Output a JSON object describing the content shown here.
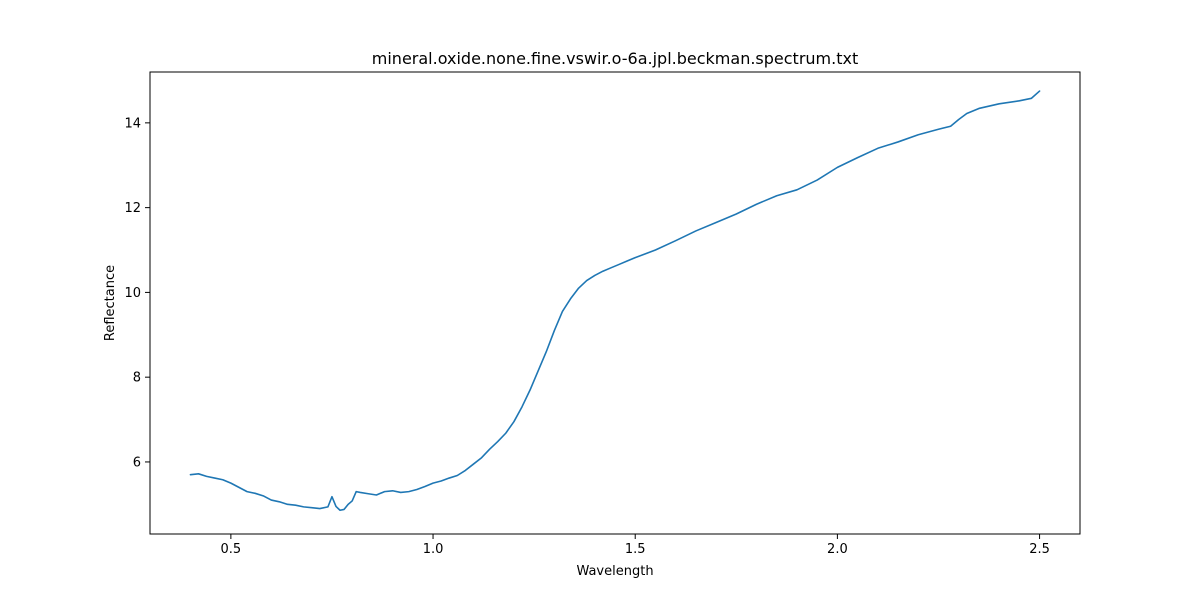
{
  "chart_data": {
    "type": "line",
    "title": "mineral.oxide.none.fine.vswir.o-6a.jpl.beckman.spectrum.txt",
    "xlabel": "Wavelength",
    "ylabel": "Reflectance",
    "xlim": [
      0.3,
      2.6
    ],
    "ylim": [
      4.3,
      15.2
    ],
    "grid": false,
    "x_ticks": [
      0.5,
      1.0,
      1.5,
      2.0,
      2.5
    ],
    "x_tick_labels": [
      "0.5",
      "1.0",
      "1.5",
      "2.0",
      "2.5"
    ],
    "y_ticks": [
      6,
      8,
      10,
      12,
      14
    ],
    "y_tick_labels": [
      "6",
      "8",
      "10",
      "12",
      "14"
    ],
    "series": [
      {
        "color": "#1f77b4",
        "x": [
          0.4,
          0.42,
          0.44,
          0.46,
          0.48,
          0.5,
          0.52,
          0.54,
          0.56,
          0.58,
          0.6,
          0.62,
          0.64,
          0.66,
          0.68,
          0.7,
          0.72,
          0.74,
          0.75,
          0.76,
          0.77,
          0.78,
          0.79,
          0.8,
          0.81,
          0.82,
          0.84,
          0.86,
          0.88,
          0.9,
          0.92,
          0.94,
          0.96,
          0.98,
          1.0,
          1.02,
          1.04,
          1.06,
          1.08,
          1.1,
          1.12,
          1.14,
          1.16,
          1.18,
          1.2,
          1.22,
          1.24,
          1.26,
          1.28,
          1.3,
          1.32,
          1.34,
          1.36,
          1.38,
          1.4,
          1.42,
          1.44,
          1.46,
          1.48,
          1.5,
          1.55,
          1.6,
          1.65,
          1.7,
          1.75,
          1.8,
          1.85,
          1.9,
          1.95,
          2.0,
          2.05,
          2.1,
          2.15,
          2.2,
          2.25,
          2.28,
          2.3,
          2.32,
          2.35,
          2.4,
          2.45,
          2.48,
          2.5
        ],
        "y": [
          5.7,
          5.72,
          5.66,
          5.62,
          5.58,
          5.5,
          5.4,
          5.3,
          5.26,
          5.2,
          5.1,
          5.06,
          5.0,
          4.98,
          4.94,
          4.92,
          4.9,
          4.94,
          5.18,
          4.95,
          4.86,
          4.88,
          5.0,
          5.08,
          5.3,
          5.28,
          5.25,
          5.22,
          5.3,
          5.32,
          5.28,
          5.3,
          5.35,
          5.42,
          5.5,
          5.55,
          5.62,
          5.68,
          5.8,
          5.95,
          6.1,
          6.3,
          6.48,
          6.68,
          6.95,
          7.3,
          7.7,
          8.15,
          8.6,
          9.1,
          9.55,
          9.85,
          10.1,
          10.28,
          10.4,
          10.5,
          10.58,
          10.66,
          10.74,
          10.82,
          11.0,
          11.22,
          11.45,
          11.65,
          11.85,
          12.08,
          12.28,
          12.42,
          12.65,
          12.95,
          13.18,
          13.4,
          13.55,
          13.72,
          13.85,
          13.92,
          14.08,
          14.22,
          14.34,
          14.45,
          14.52,
          14.58,
          14.75
        ]
      }
    ]
  }
}
